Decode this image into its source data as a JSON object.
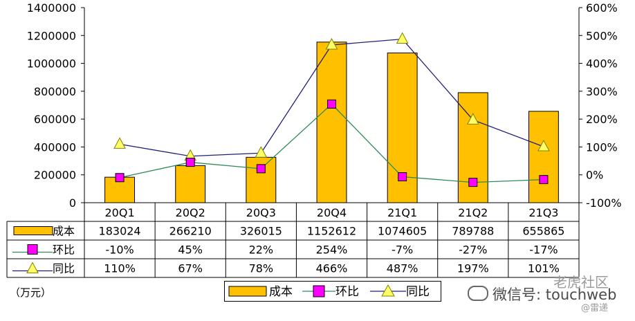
{
  "chart_data": {
    "type": "bar",
    "categories": [
      "20Q1",
      "20Q2",
      "20Q3",
      "20Q4",
      "21Q1",
      "21Q2",
      "21Q3"
    ],
    "series": [
      {
        "name": "成本",
        "type": "bar",
        "axis": "left",
        "values": [
          183024,
          266210,
          326015,
          1152612,
          1074605,
          789788,
          655865
        ],
        "color": "#FFC000"
      },
      {
        "name": "环比",
        "type": "line",
        "axis": "right",
        "values": [
          -10,
          45,
          22,
          254,
          -7,
          -27,
          -17
        ],
        "color": "#FF00FF",
        "line_color": "#2E8B57"
      },
      {
        "name": "同比",
        "type": "line",
        "axis": "right",
        "values": [
          110,
          67,
          78,
          466,
          487,
          197,
          101
        ],
        "color": "#FFFF66",
        "line_color": "#1F1F7A"
      }
    ],
    "y_left": {
      "ticks": [
        "0",
        "200000",
        "400000",
        "600000",
        "800000",
        "1000000",
        "1200000",
        "1400000"
      ],
      "ylim": [
        0,
        1400000
      ]
    },
    "y_right": {
      "ticks": [
        "-100%",
        "0%",
        "100%",
        "200%",
        "300%",
        "400%",
        "500%",
        "600%"
      ],
      "ylim": [
        -100,
        600
      ]
    },
    "table": {
      "rows": [
        {
          "label": "成本",
          "cells": [
            "183024",
            "266210",
            "326015",
            "1152612",
            "1074605",
            "789788",
            "655865"
          ]
        },
        {
          "label": "环比",
          "cells": [
            "-10%",
            "45%",
            "22%",
            "254%",
            "-7%",
            "-27%",
            "-17%"
          ]
        },
        {
          "label": "同比",
          "cells": [
            "110%",
            "67%",
            "78%",
            "466%",
            "487%",
            "197%",
            "101%"
          ]
        }
      ]
    },
    "legend": [
      "成本",
      "环比",
      "同比"
    ],
    "unit_label": "（万元）",
    "grid": false
  },
  "watermark": {
    "text": "微信号: touchweb",
    "brand": "老虎社区",
    "brand_sub": "@雷递"
  }
}
